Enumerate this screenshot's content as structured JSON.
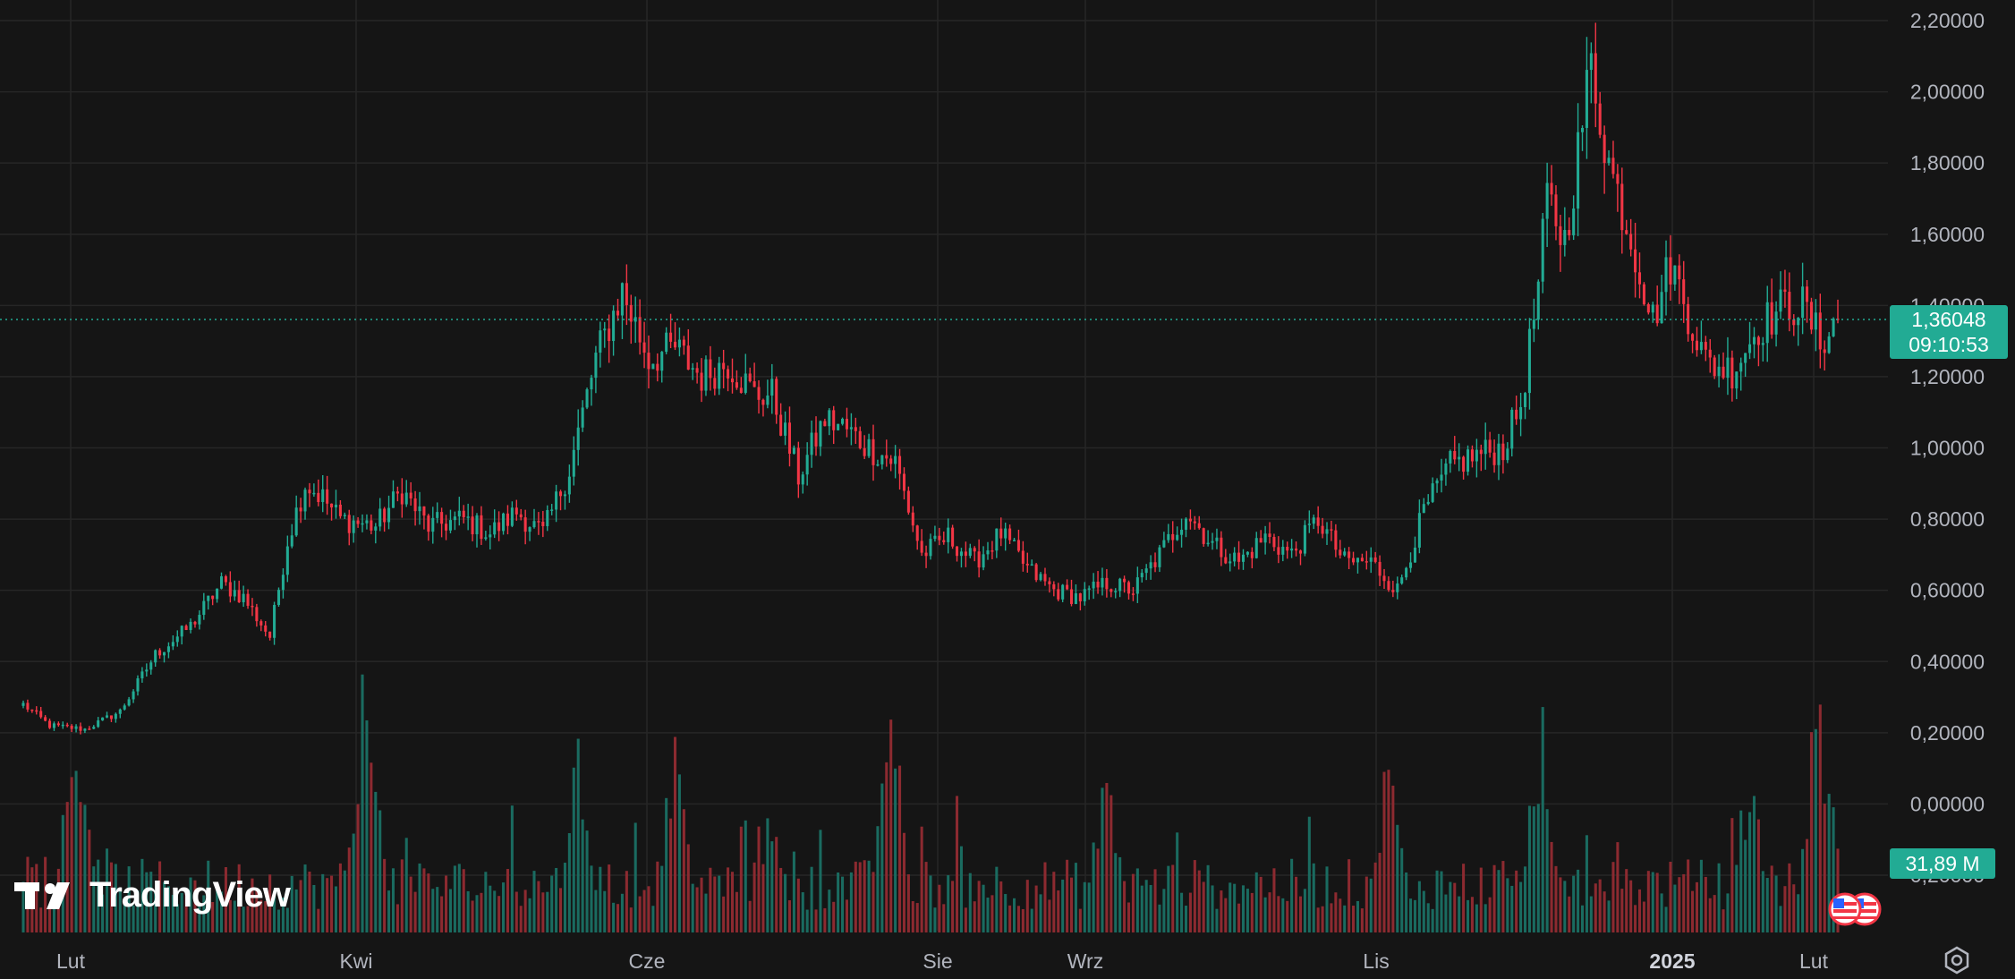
{
  "chart_data": {
    "type": "candlestick",
    "x_axis": {
      "ticks": [
        "Lut",
        "Kwi",
        "Cze",
        "Sie",
        "Wrz",
        "Lis",
        "2025",
        "Lut"
      ],
      "bold_tick": "2025"
    },
    "y_axis": {
      "ticks": [
        "2,20000",
        "2,00000",
        "1,80000",
        "1,60000",
        "1,40000",
        "1,20000",
        "1,00000",
        "0,80000",
        "0,60000",
        "0,40000",
        "0,20000",
        "0,00000",
        "-0,20000"
      ],
      "ylim": [
        -0.2,
        2.2
      ],
      "position": "right"
    },
    "path_points": [
      [
        0,
        0.28
      ],
      [
        6,
        0.22
      ],
      [
        14,
        0.21
      ],
      [
        22,
        0.26
      ],
      [
        30,
        0.42
      ],
      [
        38,
        0.5
      ],
      [
        45,
        0.62
      ],
      [
        50,
        0.58
      ],
      [
        56,
        0.47
      ],
      [
        60,
        0.74
      ],
      [
        64,
        0.9
      ],
      [
        68,
        0.86
      ],
      [
        72,
        0.8
      ],
      [
        80,
        0.78
      ],
      [
        86,
        0.88
      ],
      [
        92,
        0.78
      ],
      [
        100,
        0.8
      ],
      [
        106,
        0.76
      ],
      [
        112,
        0.82
      ],
      [
        118,
        0.76
      ],
      [
        124,
        0.94
      ],
      [
        130,
        1.25
      ],
      [
        136,
        1.44
      ],
      [
        142,
        1.25
      ],
      [
        148,
        1.28
      ],
      [
        154,
        1.2
      ],
      [
        160,
        1.24
      ],
      [
        166,
        1.15
      ],
      [
        170,
        1.15
      ],
      [
        176,
        0.92
      ],
      [
        182,
        1.08
      ],
      [
        186,
        1.06
      ],
      [
        192,
        1.0
      ],
      [
        198,
        0.96
      ],
      [
        204,
        0.7
      ],
      [
        210,
        0.75
      ],
      [
        216,
        0.68
      ],
      [
        222,
        0.76
      ],
      [
        228,
        0.66
      ],
      [
        234,
        0.6
      ],
      [
        240,
        0.58
      ],
      [
        246,
        0.62
      ],
      [
        252,
        0.6
      ],
      [
        258,
        0.7
      ],
      [
        264,
        0.82
      ],
      [
        270,
        0.73
      ],
      [
        276,
        0.68
      ],
      [
        282,
        0.75
      ],
      [
        288,
        0.7
      ],
      [
        294,
        0.8
      ],
      [
        300,
        0.68
      ],
      [
        306,
        0.68
      ],
      [
        312,
        0.6
      ],
      [
        318,
        0.82
      ],
      [
        324,
        0.95
      ],
      [
        330,
        0.98
      ],
      [
        336,
        1.0
      ],
      [
        340,
        1.12
      ],
      [
        344,
        1.45
      ],
      [
        346,
        1.7
      ],
      [
        350,
        1.58
      ],
      [
        356,
        2.08
      ],
      [
        360,
        1.8
      ],
      [
        366,
        1.55
      ],
      [
        370,
        1.36
      ],
      [
        374,
        1.52
      ],
      [
        378,
        1.38
      ],
      [
        382,
        1.24
      ],
      [
        388,
        1.22
      ],
      [
        394,
        1.34
      ],
      [
        400,
        1.4
      ],
      [
        404,
        1.4
      ],
      [
        408,
        1.3
      ],
      [
        412,
        1.36
      ]
    ],
    "volume_profile": {
      "max_volume_m": 95,
      "spikes": [
        [
          12,
          0.85
        ],
        [
          78,
          1.0
        ],
        [
          126,
          0.72
        ],
        [
          148,
          0.72
        ],
        [
          170,
          0.52
        ],
        [
          197,
          0.85
        ],
        [
          246,
          0.65
        ],
        [
          310,
          0.65
        ],
        [
          344,
          0.72
        ],
        [
          392,
          0.62
        ],
        [
          408,
          0.9
        ]
      ]
    },
    "current_price": {
      "price_label": "1,36048",
      "countdown": "09:10:53",
      "value": 1.36048,
      "color": "#22ab94"
    },
    "current_volume": {
      "label": "31,89 M",
      "color": "#22ab94"
    },
    "colors": {
      "up": "#22ab94",
      "down": "#f23645",
      "up_volume": "#1a6b60",
      "down_volume": "#8c2a30",
      "grid": "#262626",
      "background": "#151515"
    },
    "grid": true
  },
  "branding": {
    "logo_text": "TradingView",
    "logo_icon": "tradingview-logo-icon"
  },
  "icons": {
    "settings": "gear-icon",
    "flags": "us-flag-icon"
  }
}
